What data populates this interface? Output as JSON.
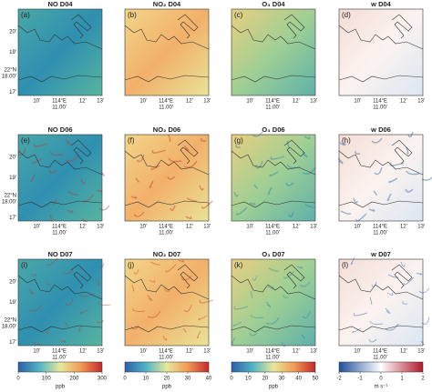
{
  "panels": [
    {
      "label": "(a)",
      "title": "NO D04"
    },
    {
      "label": "(b)",
      "title": "NO₂ D04"
    },
    {
      "label": "(c)",
      "title": "O₃ D04"
    },
    {
      "label": "(d)",
      "title": "w D04"
    },
    {
      "label": "(e)",
      "title": "NO D06"
    },
    {
      "label": "(f)",
      "title": "NO₂ D06"
    },
    {
      "label": "(g)",
      "title": "O₃ D06"
    },
    {
      "label": "(h)",
      "title": "w D06"
    },
    {
      "label": "(i)",
      "title": "NO D07"
    },
    {
      "label": "(j)",
      "title": "NO₂ D07"
    },
    {
      "label": "(k)",
      "title": "O₃ D07"
    },
    {
      "label": "(l)",
      "title": "w D07"
    }
  ],
  "map_axes": {
    "xticks": [
      [
        "10'"
      ],
      [
        "114°E",
        "11.00'"
      ],
      [
        "12'"
      ],
      [
        "13'"
      ]
    ],
    "yticks": [
      [
        "20'"
      ],
      [
        "19'"
      ],
      [
        "22°N",
        "18.00'"
      ],
      [
        "17'"
      ]
    ]
  },
  "colorbars": [
    {
      "ticks": [
        0,
        100,
        200,
        300
      ],
      "unit": "ppb"
    },
    {
      "ticks": [
        0,
        10,
        20,
        30,
        40
      ],
      "unit": "ppb"
    },
    {
      "ticks": [
        0,
        10,
        20,
        30,
        40,
        50
      ],
      "unit": "ppb"
    },
    {
      "ticks": [
        -2,
        -1,
        0,
        1,
        2
      ],
      "unit": "m s⁻¹"
    }
  ]
}
